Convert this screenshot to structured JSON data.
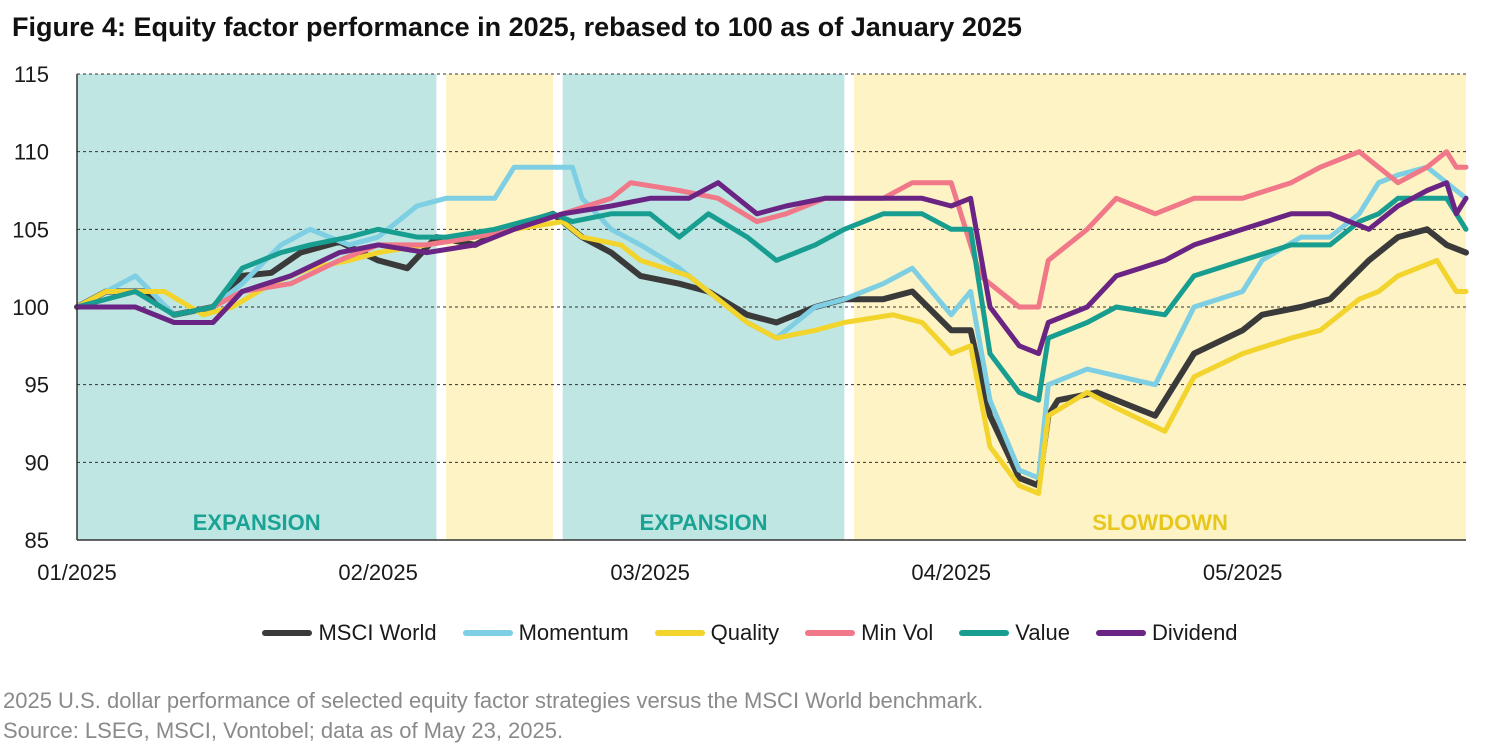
{
  "title": "Figure 4: Equity factor performance in 2025, rebased to 100 as of January 2025",
  "captions": {
    "line1": "2025 U.S. dollar performance of selected equity factor strategies versus the MSCI World benchmark.",
    "line2": "Source: LSEG, MSCI, Vontobel; data as of May 23, 2025."
  },
  "chart_data": {
    "type": "line",
    "title": "Figure 4: Equity factor performance in 2025, rebased to 100 as of January 2025",
    "xlabel": "",
    "ylabel": "",
    "ylim": [
      85,
      115
    ],
    "yticks": [
      85,
      90,
      95,
      100,
      105,
      110,
      115
    ],
    "xlim": [
      "2024-12-31",
      "2025-05-23"
    ],
    "xticks": [
      {
        "date": "2024-12-31",
        "label": "01/2025"
      },
      {
        "date": "2025-01-31",
        "label": "02/2025"
      },
      {
        "date": "2025-02-28",
        "label": "03/2025"
      },
      {
        "date": "2025-03-31",
        "label": "04/2025"
      },
      {
        "date": "2025-04-30",
        "label": "05/2025"
      }
    ],
    "grid": "horizontal-dashed",
    "legend_position": "bottom",
    "phases": [
      {
        "start": "2024-12-31",
        "end": "2025-02-06",
        "label": "EXPANSION",
        "color": "#bfe6e2",
        "text_color": "#1aa394"
      },
      {
        "start": "2025-02-07",
        "end": "2025-02-18",
        "label": "",
        "color": "#fdf3c4",
        "text_color": "#e8c71c"
      },
      {
        "start": "2025-02-19",
        "end": "2025-03-20",
        "label": "EXPANSION",
        "color": "#bfe6e2",
        "text_color": "#1aa394"
      },
      {
        "start": "2025-03-21",
        "end": "2025-05-23",
        "label": "SLOWDOWN",
        "color": "#fdf3c4",
        "text_color": "#e8c71c"
      }
    ],
    "series": [
      {
        "name": "MSCI World",
        "color": "#3a3a3a",
        "width": 6,
        "points": [
          [
            "2024-12-31",
            100
          ],
          [
            "2025-01-03",
            101
          ],
          [
            "2025-01-07",
            101
          ],
          [
            "2025-01-10",
            99.5
          ],
          [
            "2025-01-14",
            100
          ],
          [
            "2025-01-17",
            102
          ],
          [
            "2025-01-20",
            102.2
          ],
          [
            "2025-01-23",
            103.5
          ],
          [
            "2025-01-27",
            104.2
          ],
          [
            "2025-01-31",
            103
          ],
          [
            "2025-02-03",
            102.5
          ],
          [
            "2025-02-06",
            104.5
          ],
          [
            "2025-02-10",
            104
          ],
          [
            "2025-02-13",
            105
          ],
          [
            "2025-02-18",
            106
          ],
          [
            "2025-02-21",
            104.5
          ],
          [
            "2025-02-24",
            103.5
          ],
          [
            "2025-02-27",
            102
          ],
          [
            "2025-03-03",
            101.5
          ],
          [
            "2025-03-06",
            101
          ],
          [
            "2025-03-10",
            99.5
          ],
          [
            "2025-03-13",
            99
          ],
          [
            "2025-03-17",
            100
          ],
          [
            "2025-03-20",
            100.5
          ],
          [
            "2025-03-24",
            100.5
          ],
          [
            "2025-03-27",
            101
          ],
          [
            "2025-03-31",
            98.5
          ],
          [
            "2025-04-02",
            98.5
          ],
          [
            "2025-04-04",
            93
          ],
          [
            "2025-04-07",
            89
          ],
          [
            "2025-04-09",
            88.5
          ],
          [
            "2025-04-10",
            93
          ],
          [
            "2025-04-11",
            94
          ],
          [
            "2025-04-15",
            94.5
          ],
          [
            "2025-04-21",
            93
          ],
          [
            "2025-04-25",
            97
          ],
          [
            "2025-04-30",
            98.5
          ],
          [
            "2025-05-02",
            99.5
          ],
          [
            "2025-05-06",
            100
          ],
          [
            "2025-05-09",
            100.5
          ],
          [
            "2025-05-13",
            103
          ],
          [
            "2025-05-16",
            104.5
          ],
          [
            "2025-05-19",
            105
          ],
          [
            "2025-05-21",
            104
          ],
          [
            "2025-05-23",
            103.5
          ]
        ]
      },
      {
        "name": "Momentum",
        "color": "#7ecfe3",
        "width": 5,
        "points": [
          [
            "2024-12-31",
            100
          ],
          [
            "2025-01-06",
            102
          ],
          [
            "2025-01-10",
            99.5
          ],
          [
            "2025-01-14",
            100
          ],
          [
            "2025-01-17",
            101.5
          ],
          [
            "2025-01-21",
            104
          ],
          [
            "2025-01-24",
            105
          ],
          [
            "2025-01-28",
            104
          ],
          [
            "2025-01-31",
            104.5
          ],
          [
            "2025-02-04",
            106.5
          ],
          [
            "2025-02-07",
            107
          ],
          [
            "2025-02-12",
            107
          ],
          [
            "2025-02-14",
            109
          ],
          [
            "2025-02-20",
            109
          ],
          [
            "2025-02-21",
            107
          ],
          [
            "2025-02-24",
            105
          ],
          [
            "2025-02-27",
            104
          ],
          [
            "2025-03-03",
            102.5
          ],
          [
            "2025-03-06",
            101
          ],
          [
            "2025-03-10",
            99
          ],
          [
            "2025-03-13",
            98
          ],
          [
            "2025-03-17",
            100
          ],
          [
            "2025-03-20",
            100.5
          ],
          [
            "2025-03-24",
            101.5
          ],
          [
            "2025-03-27",
            102.5
          ],
          [
            "2025-03-31",
            99.5
          ],
          [
            "2025-04-02",
            101
          ],
          [
            "2025-04-04",
            94
          ],
          [
            "2025-04-07",
            89.5
          ],
          [
            "2025-04-09",
            89
          ],
          [
            "2025-04-10",
            95
          ],
          [
            "2025-04-14",
            96
          ],
          [
            "2025-04-21",
            95
          ],
          [
            "2025-04-25",
            100
          ],
          [
            "2025-04-30",
            101
          ],
          [
            "2025-05-02",
            103
          ],
          [
            "2025-05-06",
            104.5
          ],
          [
            "2025-05-09",
            104.5
          ],
          [
            "2025-05-12",
            106
          ],
          [
            "2025-05-14",
            108
          ],
          [
            "2025-05-16",
            108.5
          ],
          [
            "2025-05-19",
            109
          ],
          [
            "2025-05-21",
            108
          ],
          [
            "2025-05-23",
            107
          ]
        ]
      },
      {
        "name": "Quality",
        "color": "#f2d42c",
        "width": 5,
        "points": [
          [
            "2024-12-31",
            100
          ],
          [
            "2025-01-03",
            101
          ],
          [
            "2025-01-09",
            101
          ],
          [
            "2025-01-13",
            99.5
          ],
          [
            "2025-01-16",
            100
          ],
          [
            "2025-01-20",
            101.5
          ],
          [
            "2025-01-24",
            102.5
          ],
          [
            "2025-01-28",
            103
          ],
          [
            "2025-01-31",
            103.5
          ],
          [
            "2025-02-05",
            104
          ],
          [
            "2025-02-10",
            104.5
          ],
          [
            "2025-02-14",
            105
          ],
          [
            "2025-02-19",
            105.5
          ],
          [
            "2025-02-21",
            104.5
          ],
          [
            "2025-02-25",
            104
          ],
          [
            "2025-02-27",
            103
          ],
          [
            "2025-03-04",
            102
          ],
          [
            "2025-03-06",
            101
          ],
          [
            "2025-03-10",
            99
          ],
          [
            "2025-03-13",
            98
          ],
          [
            "2025-03-17",
            98.5
          ],
          [
            "2025-03-20",
            99
          ],
          [
            "2025-03-25",
            99.5
          ],
          [
            "2025-03-28",
            99
          ],
          [
            "2025-03-31",
            97
          ],
          [
            "2025-04-02",
            97.5
          ],
          [
            "2025-04-04",
            91
          ],
          [
            "2025-04-07",
            88.5
          ],
          [
            "2025-04-09",
            88
          ],
          [
            "2025-04-10",
            93
          ],
          [
            "2025-04-14",
            94.5
          ],
          [
            "2025-04-17",
            93.5
          ],
          [
            "2025-04-22",
            92
          ],
          [
            "2025-04-25",
            95.5
          ],
          [
            "2025-04-30",
            97
          ],
          [
            "2025-05-05",
            98
          ],
          [
            "2025-05-08",
            98.5
          ],
          [
            "2025-05-12",
            100.5
          ],
          [
            "2025-05-14",
            101
          ],
          [
            "2025-05-16",
            102
          ],
          [
            "2025-05-20",
            103
          ],
          [
            "2025-05-22",
            101
          ],
          [
            "2025-05-23",
            101
          ]
        ]
      },
      {
        "name": "Min Vol",
        "color": "#f07888",
        "width": 5,
        "points": [
          [
            "2024-12-31",
            100
          ],
          [
            "2025-01-06",
            101
          ],
          [
            "2025-01-10",
            99.5
          ],
          [
            "2025-01-14",
            100
          ],
          [
            "2025-01-17",
            101
          ],
          [
            "2025-01-22",
            101.5
          ],
          [
            "2025-01-27",
            103
          ],
          [
            "2025-01-31",
            104
          ],
          [
            "2025-02-05",
            104
          ],
          [
            "2025-02-10",
            104.5
          ],
          [
            "2025-02-14",
            105
          ],
          [
            "2025-02-19",
            106
          ],
          [
            "2025-02-24",
            107
          ],
          [
            "2025-02-26",
            108
          ],
          [
            "2025-03-03",
            107.5
          ],
          [
            "2025-03-07",
            107
          ],
          [
            "2025-03-11",
            105.5
          ],
          [
            "2025-03-14",
            106
          ],
          [
            "2025-03-18",
            107
          ],
          [
            "2025-03-24",
            107
          ],
          [
            "2025-03-27",
            108
          ],
          [
            "2025-03-31",
            108
          ],
          [
            "2025-04-03",
            102
          ],
          [
            "2025-04-07",
            100
          ],
          [
            "2025-04-09",
            100
          ],
          [
            "2025-04-10",
            103
          ],
          [
            "2025-04-14",
            105
          ],
          [
            "2025-04-17",
            107
          ],
          [
            "2025-04-21",
            106
          ],
          [
            "2025-04-25",
            107
          ],
          [
            "2025-04-30",
            107
          ],
          [
            "2025-05-05",
            108
          ],
          [
            "2025-05-08",
            109
          ],
          [
            "2025-05-12",
            110
          ],
          [
            "2025-05-14",
            109
          ],
          [
            "2025-05-16",
            108
          ],
          [
            "2025-05-19",
            109
          ],
          [
            "2025-05-21",
            110
          ],
          [
            "2025-05-22",
            109
          ],
          [
            "2025-05-23",
            109
          ]
        ]
      },
      {
        "name": "Value",
        "color": "#189e90",
        "width": 5,
        "points": [
          [
            "2024-12-31",
            100
          ],
          [
            "2025-01-06",
            101
          ],
          [
            "2025-01-10",
            99.5
          ],
          [
            "2025-01-14",
            100
          ],
          [
            "2025-01-17",
            102.5
          ],
          [
            "2025-01-21",
            103.5
          ],
          [
            "2025-01-24",
            104
          ],
          [
            "2025-01-28",
            104.5
          ],
          [
            "2025-01-31",
            105
          ],
          [
            "2025-02-04",
            104.5
          ],
          [
            "2025-02-07",
            104.5
          ],
          [
            "2025-02-12",
            105
          ],
          [
            "2025-02-18",
            106
          ],
          [
            "2025-02-20",
            105.5
          ],
          [
            "2025-02-24",
            106
          ],
          [
            "2025-02-28",
            106
          ],
          [
            "2025-03-03",
            104.5
          ],
          [
            "2025-03-06",
            106
          ],
          [
            "2025-03-10",
            104.5
          ],
          [
            "2025-03-13",
            103
          ],
          [
            "2025-03-17",
            104
          ],
          [
            "2025-03-20",
            105
          ],
          [
            "2025-03-24",
            106
          ],
          [
            "2025-03-28",
            106
          ],
          [
            "2025-03-31",
            105
          ],
          [
            "2025-04-02",
            105
          ],
          [
            "2025-04-04",
            97
          ],
          [
            "2025-04-07",
            94.5
          ],
          [
            "2025-04-09",
            94
          ],
          [
            "2025-04-10",
            98
          ],
          [
            "2025-04-14",
            99
          ],
          [
            "2025-04-17",
            100
          ],
          [
            "2025-04-22",
            99.5
          ],
          [
            "2025-04-25",
            102
          ],
          [
            "2025-04-30",
            103
          ],
          [
            "2025-05-05",
            104
          ],
          [
            "2025-05-09",
            104
          ],
          [
            "2025-05-12",
            105.5
          ],
          [
            "2025-05-14",
            106
          ],
          [
            "2025-05-16",
            107
          ],
          [
            "2025-05-19",
            107
          ],
          [
            "2025-05-21",
            107
          ],
          [
            "2025-05-23",
            105
          ]
        ]
      },
      {
        "name": "Dividend",
        "color": "#6a2484",
        "width": 5,
        "points": [
          [
            "2024-12-31",
            100
          ],
          [
            "2025-01-06",
            100
          ],
          [
            "2025-01-10",
            99
          ],
          [
            "2025-01-14",
            99
          ],
          [
            "2025-01-17",
            101
          ],
          [
            "2025-01-22",
            102
          ],
          [
            "2025-01-27",
            103.5
          ],
          [
            "2025-01-31",
            104
          ],
          [
            "2025-02-05",
            103.5
          ],
          [
            "2025-02-10",
            104
          ],
          [
            "2025-02-14",
            105
          ],
          [
            "2025-02-19",
            106
          ],
          [
            "2025-02-24",
            106.5
          ],
          [
            "2025-02-28",
            107
          ],
          [
            "2025-03-04",
            107
          ],
          [
            "2025-03-07",
            108
          ],
          [
            "2025-03-11",
            106
          ],
          [
            "2025-03-14",
            106.5
          ],
          [
            "2025-03-18",
            107
          ],
          [
            "2025-03-24",
            107
          ],
          [
            "2025-03-28",
            107
          ],
          [
            "2025-03-31",
            106.5
          ],
          [
            "2025-04-02",
            107
          ],
          [
            "2025-04-04",
            100
          ],
          [
            "2025-04-07",
            97.5
          ],
          [
            "2025-04-09",
            97
          ],
          [
            "2025-04-10",
            99
          ],
          [
            "2025-04-14",
            100
          ],
          [
            "2025-04-17",
            102
          ],
          [
            "2025-04-22",
            103
          ],
          [
            "2025-04-25",
            104
          ],
          [
            "2025-04-30",
            105
          ],
          [
            "2025-05-05",
            106
          ],
          [
            "2025-05-09",
            106
          ],
          [
            "2025-05-13",
            105
          ],
          [
            "2025-05-16",
            106.5
          ],
          [
            "2025-05-19",
            107.5
          ],
          [
            "2025-05-21",
            108
          ],
          [
            "2025-05-22",
            106
          ],
          [
            "2025-05-23",
            107
          ]
        ]
      }
    ]
  }
}
